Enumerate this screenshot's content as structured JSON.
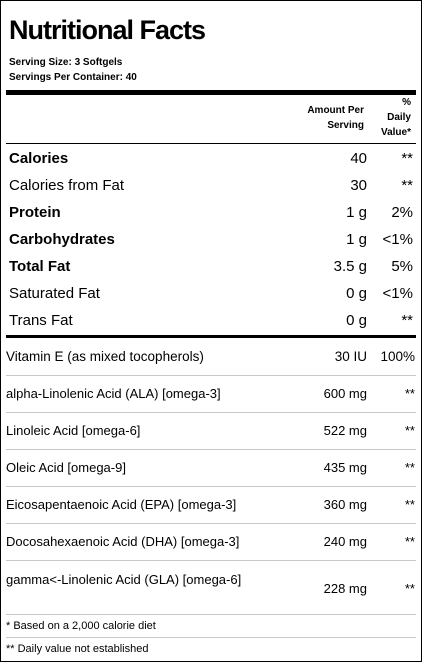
{
  "title": "Nutritional Facts",
  "serving_size": "Serving Size:  3 Softgels",
  "servings_per_container": "Servings Per Container:  40",
  "header": {
    "amount_line1": "Amount Per",
    "amount_line2": "Serving",
    "dv_line1": "%",
    "dv_line2": "Daily",
    "dv_line3": "Value*"
  },
  "main_rows": [
    {
      "label": "Calories",
      "amount": "40",
      "dv": "**"
    },
    {
      "label": "Calories from Fat",
      "amount": "30",
      "dv": "**"
    },
    {
      "label": "Protein",
      "amount": "1 g",
      "dv": "2%"
    },
    {
      "label": "Carbohydrates",
      "amount": "1 g",
      "dv": "<1%"
    },
    {
      "label": "Total Fat",
      "amount": "3.5 g",
      "dv": "5%"
    },
    {
      "label": "Saturated Fat",
      "amount": "0 g",
      "dv": "<1%"
    },
    {
      "label": "Trans Fat",
      "amount": "0 g",
      "dv": "**"
    }
  ],
  "sub_rows": [
    {
      "label": "Vitamin E (as mixed tocopherols)",
      "amount": "30 IU",
      "dv": "100%"
    },
    {
      "label": "alpha-Linolenic Acid (ALA) [omega-3]",
      "amount": "600 mg",
      "dv": "**"
    },
    {
      "label": "Linoleic Acid [omega-6]",
      "amount": "522 mg",
      "dv": "**"
    },
    {
      "label": "Oleic Acid [omega-9]",
      "amount": "435 mg",
      "dv": "**"
    },
    {
      "label": "Eicosapentaenoic Acid (EPA) [omega-3]",
      "amount": "360 mg",
      "dv": "**"
    },
    {
      "label": "Docosahexaenoic Acid (DHA) [omega-3]",
      "amount": "240 mg",
      "dv": "**"
    },
    {
      "label": "gamma<-Linolenic Acid (GLA) [omega-6]",
      "amount": "228 mg",
      "dv": "**"
    }
  ],
  "footnotes": [
    "* Based on a 2,000 calorie diet",
    "** Daily value not established"
  ]
}
